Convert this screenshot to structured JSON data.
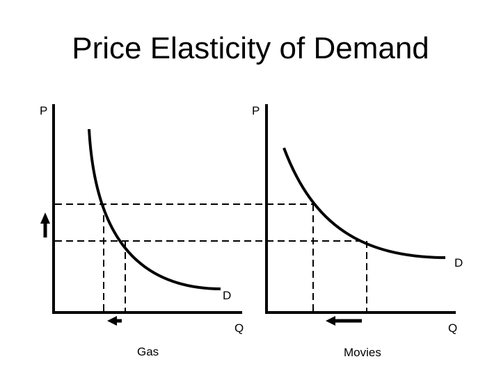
{
  "title": "Price Elasticity of Demand",
  "left_graph": {
    "y_axis_label": "P",
    "x_axis_label": "Q",
    "curve_label": "D",
    "caption": "Gas"
  },
  "right_graph": {
    "y_axis_label": "P",
    "x_axis_label": "Q",
    "curve_label": "D",
    "caption": "Movies"
  }
}
